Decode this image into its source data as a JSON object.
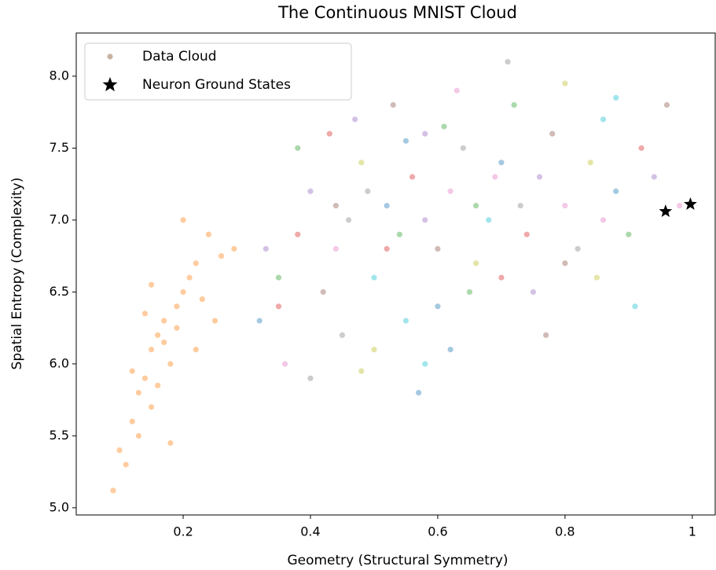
{
  "chart_data": {
    "type": "scatter",
    "title": "The Continuous MNIST Cloud",
    "xlabel": "Geometry (Structural Symmetry)",
    "ylabel": "Spatial Entropy (Complexity)",
    "xlim": [
      0.032,
      1.036
    ],
    "ylim": [
      4.95,
      8.3
    ],
    "xticks": [
      0.2,
      0.4,
      0.6,
      0.8,
      1.0
    ],
    "yticks": [
      {
        "value": 5.0,
        "label": "5.0"
      },
      5.5,
      {
        "value": 6.0,
        "label": "6.0"
      },
      6.5,
      {
        "value": 7.0,
        "label": "7.0"
      },
      7.5,
      {
        "value": 8.0,
        "label": "8.0"
      }
    ],
    "legend": "upper left",
    "series": [
      {
        "name": "Data Cloud",
        "marker": "circle",
        "color": "#c8b3a3",
        "opacity": 0.4,
        "x": [
          0.09,
          0.1,
          0.12,
          0.13,
          0.14,
          0.15,
          0.16,
          0.17,
          0.18,
          0.19,
          0.2,
          0.21,
          0.22,
          0.24,
          0.2,
          0.13,
          0.15,
          0.16,
          0.17,
          0.14,
          0.19,
          0.23,
          0.26,
          0.28,
          0.12,
          0.11,
          0.18,
          0.22,
          0.15,
          0.25,
          0.32,
          0.35,
          0.38,
          0.4,
          0.42,
          0.44,
          0.46,
          0.48,
          0.5,
          0.52,
          0.54,
          0.56,
          0.58,
          0.6,
          0.62,
          0.64,
          0.66,
          0.68,
          0.7,
          0.72,
          0.74,
          0.76,
          0.78,
          0.8,
          0.82,
          0.84,
          0.86,
          0.88,
          0.9,
          0.92,
          0.94,
          0.96,
          0.98,
          0.45,
          0.5,
          0.55,
          0.6,
          0.65,
          0.7,
          0.75,
          0.8,
          0.36,
          0.4,
          0.48,
          0.58,
          0.62,
          0.38,
          0.43,
          0.47,
          0.53,
          0.63,
          0.71,
          0.8,
          0.88,
          0.57,
          0.66,
          0.52,
          0.58,
          0.44,
          0.69,
          0.73,
          0.85,
          0.91,
          0.55,
          0.61,
          0.35,
          0.33,
          0.77,
          0.86,
          0.49
        ],
        "y": [
          5.12,
          5.4,
          5.6,
          5.8,
          5.9,
          6.1,
          6.2,
          6.3,
          6.0,
          6.4,
          6.5,
          6.6,
          6.7,
          6.9,
          7.0,
          5.5,
          5.7,
          5.85,
          6.15,
          6.35,
          6.25,
          6.45,
          6.75,
          6.8,
          5.95,
          5.3,
          5.45,
          6.1,
          6.55,
          6.3,
          6.3,
          6.6,
          6.9,
          7.2,
          6.5,
          6.8,
          7.0,
          7.4,
          6.6,
          7.1,
          6.9,
          7.3,
          7.6,
          6.8,
          7.2,
          7.5,
          6.7,
          7.0,
          7.4,
          7.8,
          6.9,
          7.3,
          7.6,
          7.1,
          6.8,
          7.4,
          7.7,
          7.2,
          6.9,
          7.5,
          7.3,
          7.8,
          7.1,
          6.2,
          6.1,
          6.3,
          6.4,
          6.5,
          6.6,
          6.5,
          6.7,
          6.0,
          5.9,
          5.95,
          6.0,
          6.1,
          7.5,
          7.6,
          7.7,
          7.8,
          7.9,
          8.1,
          7.95,
          7.85,
          5.8,
          7.1,
          6.8,
          7.0,
          7.1,
          7.3,
          7.1,
          6.6,
          6.4,
          7.55,
          7.65,
          6.4,
          6.8,
          6.2,
          7.0,
          7.2
        ],
        "colors": [
          "#ff7f0e",
          "#ff7f0e",
          "#ff7f0e",
          "#ff7f0e",
          "#ff7f0e",
          "#ff7f0e",
          "#ff7f0e",
          "#ff7f0e",
          "#ff7f0e",
          "#ff7f0e",
          "#ff7f0e",
          "#ff7f0e",
          "#ff7f0e",
          "#ff7f0e",
          "#ff7f0e",
          "#ff7f0e",
          "#ff7f0e",
          "#ff7f0e",
          "#ff7f0e",
          "#ff7f0e",
          "#ff7f0e",
          "#ff7f0e",
          "#ff7f0e",
          "#ff7f0e",
          "#ff7f0e",
          "#ff7f0e",
          "#ff7f0e",
          "#ff7f0e",
          "#ff7f0e",
          "#ff7f0e",
          "#1f77b4",
          "#2ca02c",
          "#d62728",
          "#9467bd",
          "#8c564b",
          "#e377c2",
          "#7f7f7f",
          "#bcbd22",
          "#17becf",
          "#1f77b4",
          "#2ca02c",
          "#d62728",
          "#9467bd",
          "#8c564b",
          "#e377c2",
          "#7f7f7f",
          "#bcbd22",
          "#17becf",
          "#1f77b4",
          "#2ca02c",
          "#d62728",
          "#9467bd",
          "#8c564b",
          "#e377c2",
          "#7f7f7f",
          "#bcbd22",
          "#17becf",
          "#1f77b4",
          "#2ca02c",
          "#d62728",
          "#9467bd",
          "#8c564b",
          "#e377c2",
          "#7f7f7f",
          "#bcbd22",
          "#17becf",
          "#1f77b4",
          "#2ca02c",
          "#d62728",
          "#9467bd",
          "#8c564b",
          "#e377c2",
          "#7f7f7f",
          "#bcbd22",
          "#17becf",
          "#1f77b4",
          "#2ca02c",
          "#d62728",
          "#9467bd",
          "#8c564b",
          "#e377c2",
          "#7f7f7f",
          "#bcbd22",
          "#17becf",
          "#1f77b4",
          "#2ca02c",
          "#d62728",
          "#9467bd",
          "#8c564b",
          "#e377c2",
          "#7f7f7f",
          "#bcbd22",
          "#17becf",
          "#1f77b4",
          "#2ca02c",
          "#d62728",
          "#9467bd",
          "#8c564b",
          "#e377c2",
          "#7f7f7f"
        ]
      },
      {
        "name": "Neuron Ground States",
        "marker": "star",
        "color": "#000000",
        "opacity": 1,
        "x": [
          0.958,
          0.997
        ],
        "y": [
          7.06,
          7.11
        ]
      }
    ]
  }
}
